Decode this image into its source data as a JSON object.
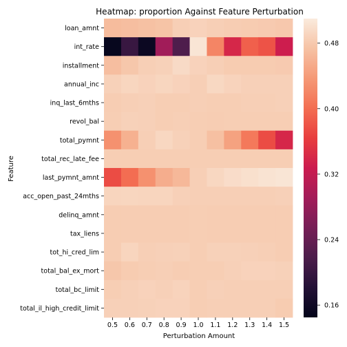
{
  "chart_data": {
    "type": "heatmap",
    "title": "Heatmap: proportion Against Feature Perturbation",
    "xlabel": "Perturbation Amount",
    "ylabel": "Feature",
    "x": [
      "0.5",
      "0.6",
      "0.7",
      "0.8",
      "0.9",
      "1.0",
      "1.1",
      "1.2",
      "1.3",
      "1.4",
      "1.5"
    ],
    "y": [
      "loan_amnt",
      "int_rate",
      "installment",
      "annual_inc",
      "inq_last_6mths",
      "revol_bal",
      "total_pymnt",
      "total_rec_late_fee",
      "last_pymnt_amnt",
      "acc_open_past_24mths",
      "delinq_amnt",
      "tax_liens",
      "tot_hi_cred_lim",
      "total_bal_ex_mort",
      "total_bc_limit",
      "total_il_high_credit_limit"
    ],
    "values": [
      [
        0.468,
        0.47,
        0.473,
        0.475,
        0.485,
        0.488,
        0.485,
        0.483,
        0.482,
        0.481,
        0.479
      ],
      [
        0.15,
        0.2,
        0.155,
        0.29,
        0.22,
        0.505,
        0.42,
        0.34,
        0.39,
        0.38,
        0.33
      ],
      [
        0.47,
        0.478,
        0.485,
        0.487,
        0.495,
        0.488,
        0.485,
        0.482,
        0.482,
        0.482,
        0.481
      ],
      [
        0.487,
        0.491,
        0.488,
        0.491,
        0.488,
        0.485,
        0.493,
        0.489,
        0.486,
        0.486,
        0.486
      ],
      [
        0.483,
        0.485,
        0.486,
        0.484,
        0.484,
        0.485,
        0.484,
        0.484,
        0.485,
        0.485,
        0.486
      ],
      [
        0.484,
        0.487,
        0.486,
        0.484,
        0.485,
        0.484,
        0.483,
        0.484,
        0.484,
        0.484,
        0.484
      ],
      [
        0.43,
        0.458,
        0.485,
        0.492,
        0.487,
        0.484,
        0.472,
        0.445,
        0.41,
        0.375,
        0.34
      ],
      [
        0.484,
        0.484,
        0.484,
        0.484,
        0.484,
        0.484,
        0.484,
        0.484,
        0.484,
        0.484,
        0.484
      ],
      [
        0.375,
        0.4,
        0.43,
        0.455,
        0.465,
        0.485,
        0.492,
        0.497,
        0.5,
        0.503,
        0.505
      ],
      [
        0.49,
        0.491,
        0.49,
        0.49,
        0.486,
        0.485,
        0.485,
        0.485,
        0.485,
        0.485,
        0.486
      ],
      [
        0.483,
        0.483,
        0.483,
        0.483,
        0.483,
        0.484,
        0.483,
        0.483,
        0.483,
        0.483,
        0.483
      ],
      [
        0.483,
        0.483,
        0.483,
        0.483,
        0.483,
        0.484,
        0.483,
        0.483,
        0.483,
        0.483,
        0.483
      ],
      [
        0.483,
        0.49,
        0.485,
        0.486,
        0.487,
        0.484,
        0.487,
        0.487,
        0.486,
        0.485,
        0.483
      ],
      [
        0.478,
        0.482,
        0.484,
        0.485,
        0.483,
        0.484,
        0.484,
        0.486,
        0.488,
        0.488,
        0.487
      ],
      [
        0.484,
        0.486,
        0.488,
        0.486,
        0.489,
        0.484,
        0.486,
        0.485,
        0.485,
        0.485,
        0.485
      ],
      [
        0.486,
        0.486,
        0.487,
        0.488,
        0.488,
        0.484,
        0.485,
        0.485,
        0.485,
        0.485,
        0.482
      ]
    ],
    "colorbar": {
      "ticks": [
        "0.16",
        "0.24",
        "0.32",
        "0.40",
        "0.48"
      ],
      "range": [
        0.145,
        0.51
      ],
      "colormap": "rocket"
    },
    "grid": false,
    "legend": "colorbar-right"
  }
}
